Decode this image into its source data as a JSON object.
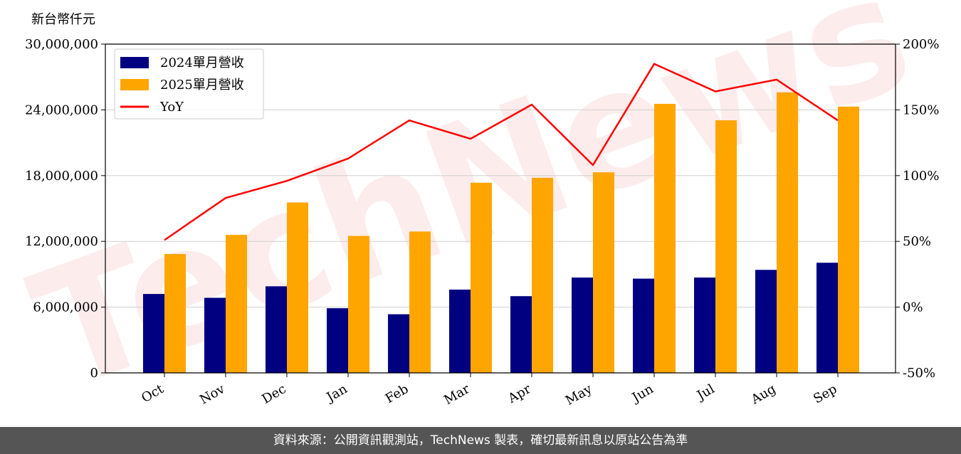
{
  "chart_data": {
    "type": "bar",
    "unit_label": "新台幣仟元",
    "categories": [
      "Oct",
      "Nov",
      "Dec",
      "Jan",
      "Feb",
      "Mar",
      "Apr",
      "May",
      "Jun",
      "Jul",
      "Aug",
      "Sep"
    ],
    "series": [
      {
        "name": "2024單月營收",
        "type": "bar",
        "axis": "left",
        "color": "#000080",
        "values": [
          7200000,
          6850000,
          7900000,
          5900000,
          5350000,
          7600000,
          7000000,
          8700000,
          8600000,
          8700000,
          9400000,
          10050000
        ]
      },
      {
        "name": "2025單月營收",
        "type": "bar",
        "axis": "left",
        "color": "#FFA500",
        "values": [
          10850000,
          12600000,
          15550000,
          12500000,
          12900000,
          17350000,
          17800000,
          18300000,
          24550000,
          23050000,
          25600000,
          24300000
        ]
      },
      {
        "name": "YoY",
        "type": "line",
        "axis": "right",
        "color": "#FF0000",
        "values": [
          51,
          83,
          96,
          113,
          142,
          128,
          154,
          108,
          185,
          164,
          173,
          142
        ]
      }
    ],
    "left_axis": {
      "min": 0,
      "max": 30000000,
      "ticks": [
        0,
        6000000,
        12000000,
        18000000,
        24000000,
        30000000
      ],
      "tick_labels": [
        "0",
        "6,000,000",
        "12,000,000",
        "18,000,000",
        "24,000,000",
        "30,000,000"
      ]
    },
    "right_axis": {
      "min": -50,
      "max": 200,
      "ticks": [
        -50,
        0,
        50,
        100,
        150,
        200
      ],
      "tick_labels": [
        "-50%",
        "0%",
        "50%",
        "100%",
        "150%",
        "200%"
      ]
    },
    "grid": true,
    "legend_position": "top-left"
  },
  "watermark": "TechNews",
  "footer": {
    "text": "資料來源：公開資訊觀測站，TechNews 製表，確切最新訊息以原站公告為準"
  }
}
